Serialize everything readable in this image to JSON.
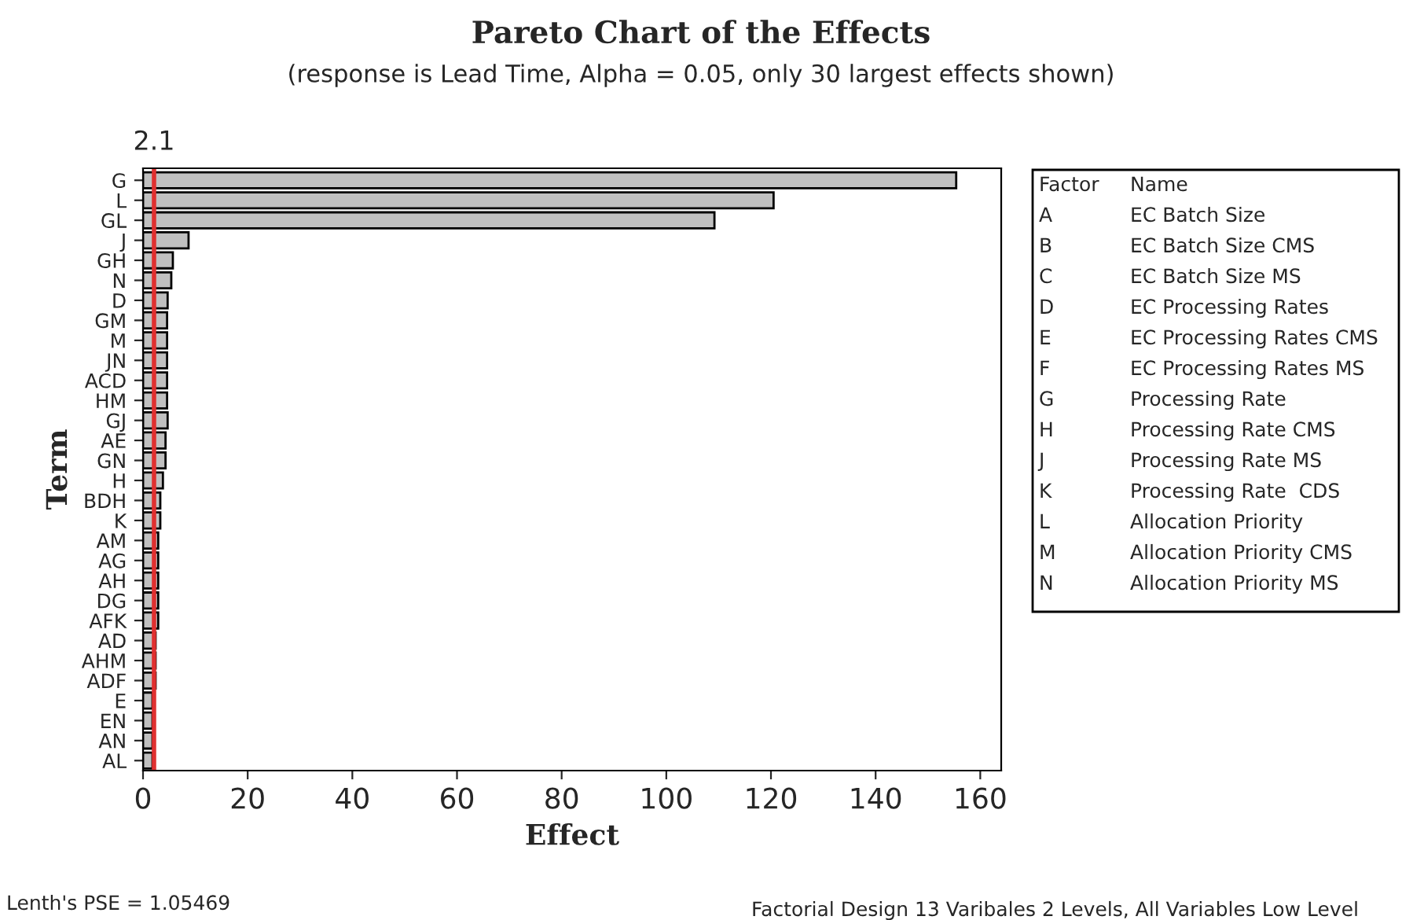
{
  "chart_data": {
    "type": "bar",
    "orientation": "horizontal",
    "title": "Pareto Chart of the Effects",
    "subtitle": "(response is Lead Time, Alpha = 0.05, only 30 largest effects shown)",
    "xlabel": "Effect",
    "ylabel": "Term",
    "categories": [
      "G",
      "L",
      "GL",
      "J",
      "GH",
      "N",
      "D",
      "GM",
      "M",
      "JN",
      "ACD",
      "HM",
      "GJ",
      "AE",
      "GN",
      "H",
      "BDH",
      "K",
      "AM",
      "AG",
      "AH",
      "DG",
      "AFK",
      "AD",
      "AHM",
      "ADF",
      "E",
      "EN",
      "AN",
      "AL"
    ],
    "values": [
      155.4,
      120.5,
      109.2,
      8.7,
      5.7,
      5.4,
      4.7,
      4.6,
      4.6,
      4.6,
      4.6,
      4.6,
      4.7,
      4.3,
      4.3,
      3.8,
      3.3,
      3.3,
      2.9,
      2.9,
      2.9,
      2.9,
      2.9,
      2.4,
      2.4,
      2.4,
      1.8,
      1.8,
      1.8,
      1.8
    ],
    "color": "#c0c0c0",
    "xlim": [
      0,
      164
    ],
    "xticks": [
      0,
      20,
      40,
      60,
      80,
      100,
      120,
      140,
      160
    ],
    "grid": false,
    "ref_lines": [
      {
        "axis": "x",
        "value": 2.1,
        "label": "2.1",
        "color": "#e03030"
      }
    ],
    "annotations": [
      "Factor",
      "Name",
      "A",
      "EC Batch Size",
      "B",
      "EC Batch Size CMS",
      "C",
      "EC Batch Size MS",
      "D",
      "EC Processing Rates",
      "E",
      "EC Processing Rates CMS",
      "F",
      "EC Processing Rates MS",
      "G",
      "Processing Rate",
      "H",
      "Processing Rate CMS",
      "J",
      "Processing Rate MS",
      "K",
      "Processing Rate  CDS",
      "L",
      "Allocation Priority",
      "M",
      "Allocation Priority CMS",
      "N",
      "Allocation Priority MS",
      "Lenth's PSE = 1.05469",
      "Factorial Design 13 Varibales 2 Levels, All Variables Low Level"
    ]
  }
}
